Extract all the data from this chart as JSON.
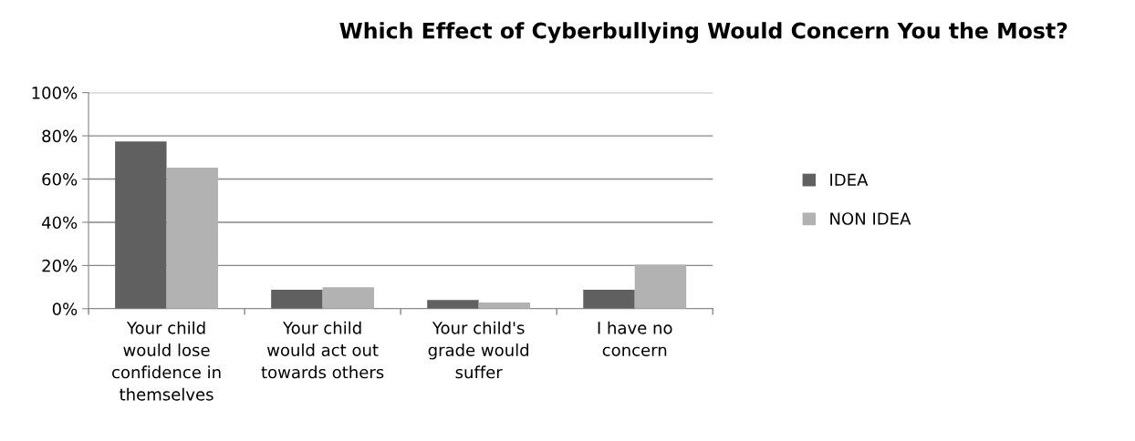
{
  "chart_data": {
    "type": "bar",
    "title": "Which Effect of Cyberbullying Would Concern You the Most?",
    "categories": [
      "Your child\nwould lose\nconfidence in\nthemselves",
      "Your child\nwould act out\ntowards others",
      "Your child's\ngrade would\nsuffer",
      "I have no\nconcern"
    ],
    "series": [
      {
        "name": "IDEA",
        "color": "#606060",
        "values": [
          77.4,
          8.8,
          4.0,
          8.8
        ]
      },
      {
        "name": "NON IDEA",
        "color": "#b2b2b2",
        "values": [
          65.3,
          9.9,
          2.9,
          20.4
        ]
      }
    ],
    "ylim": [
      0,
      100
    ],
    "yticks": [
      {
        "value": 0,
        "label": "0%"
      },
      {
        "value": 20,
        "label": "20%"
      },
      {
        "value": 40,
        "label": "40%"
      },
      {
        "value": 60,
        "label": "60%"
      },
      {
        "value": 80,
        "label": "80%"
      },
      {
        "value": 100,
        "label": "100%"
      }
    ],
    "grid": "y",
    "legend": "right"
  }
}
